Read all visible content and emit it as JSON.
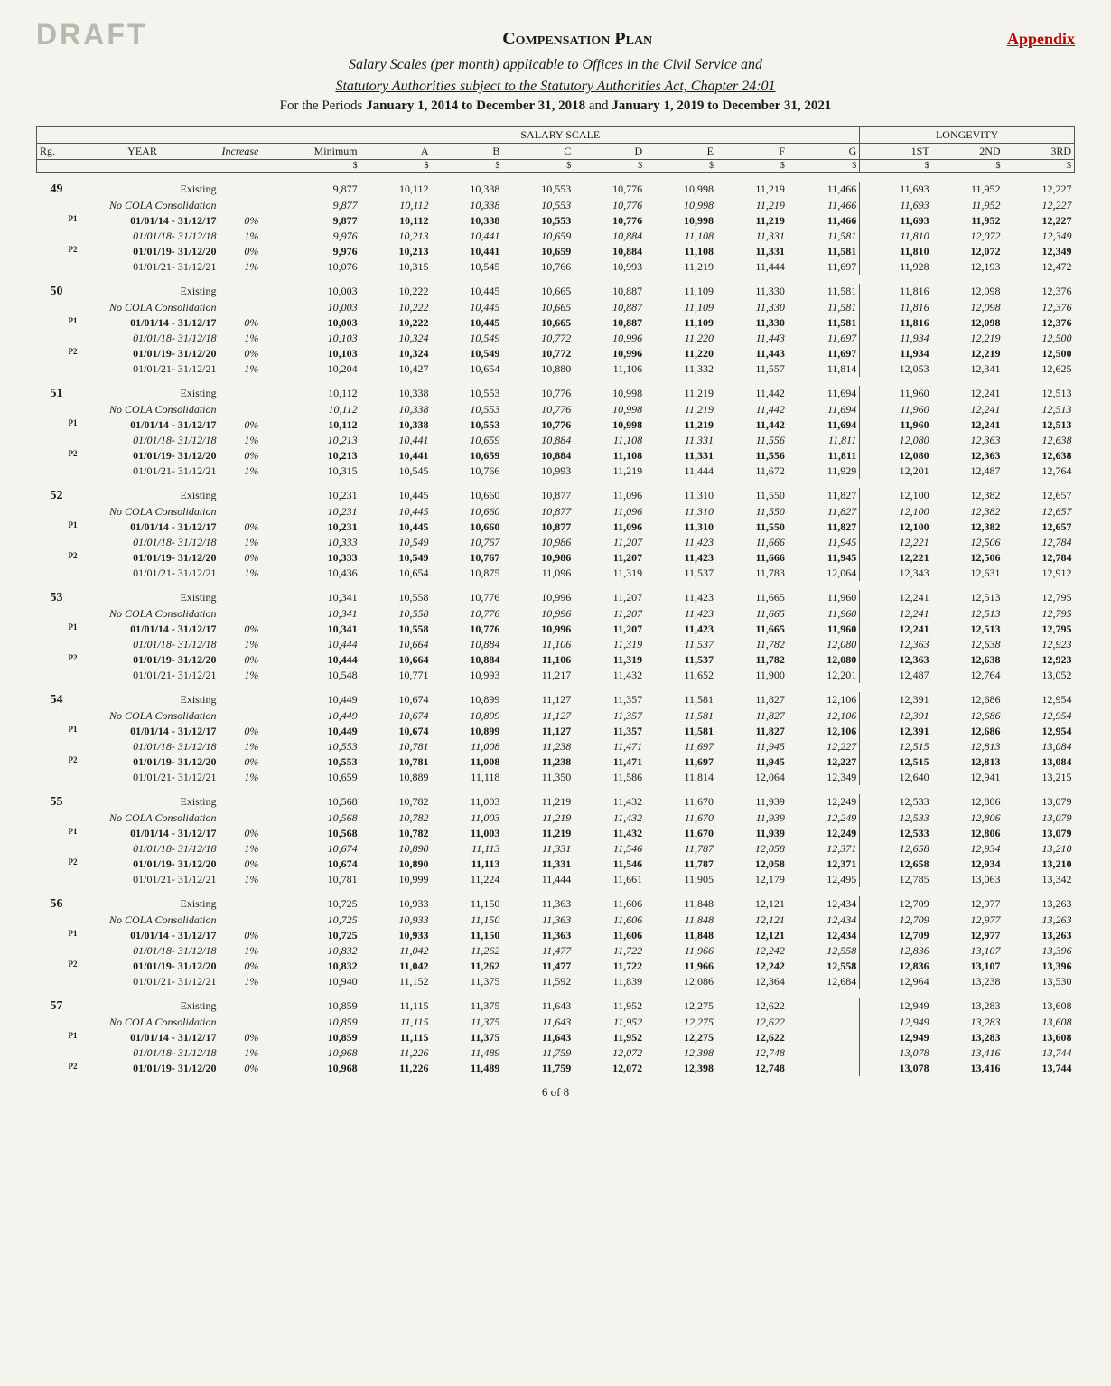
{
  "header": {
    "draft": "DRAFT",
    "title": "Compensation Plan",
    "appendix": "Appendix",
    "sub1": "Salary Scales (per month) applicable to Offices in the Civil Service and",
    "sub2": "Statutory Authorities subject to the Statutory Authorities Act, Chapter 24:01",
    "periods_prefix": "For the Periods ",
    "period1": "January 1, 2014 to December 31, 2018",
    "periods_mid": " and ",
    "period2": "January 1, 2019 to December 31, 2021"
  },
  "columns": {
    "rg": "Rg.",
    "year": "YEAR",
    "increase": "Increase",
    "minimum": "Minimum",
    "scale": "SALARY SCALE",
    "letters": [
      "A",
      "B",
      "C",
      "D",
      "E",
      "F",
      "G"
    ],
    "longevity": "LONGEVITY",
    "long_cols": [
      "1ST",
      "2ND",
      "3RD"
    ],
    "unit": "$"
  },
  "row_labels": {
    "existing": "Existing",
    "nocola": "No COLA Consolidation",
    "p1a": "01/01/14 - 31/12/17",
    "p1b": "01/01/18- 31/12/18",
    "p2a": "01/01/19- 31/12/20",
    "p2b": "01/01/21- 31/12/21",
    "p1tag": "P1",
    "p2tag": "P2"
  },
  "increases": {
    "zero": "0%",
    "one": "1%"
  },
  "groups": [
    {
      "rg": "49",
      "rows": [
        [
          "9,877",
          "10,112",
          "10,338",
          "10,553",
          "10,776",
          "10,998",
          "11,219",
          "11,466",
          "11,693",
          "11,952",
          "12,227"
        ],
        [
          "9,877",
          "10,112",
          "10,338",
          "10,553",
          "10,776",
          "10,998",
          "11,219",
          "11,466",
          "11,693",
          "11,952",
          "12,227"
        ],
        [
          "9,877",
          "10,112",
          "10,338",
          "10,553",
          "10,776",
          "10,998",
          "11,219",
          "11,466",
          "11,693",
          "11,952",
          "12,227"
        ],
        [
          "9,976",
          "10,213",
          "10,441",
          "10,659",
          "10,884",
          "11,108",
          "11,331",
          "11,581",
          "11,810",
          "12,072",
          "12,349"
        ],
        [
          "9,976",
          "10,213",
          "10,441",
          "10,659",
          "10,884",
          "11,108",
          "11,331",
          "11,581",
          "11,810",
          "12,072",
          "12,349"
        ],
        [
          "10,076",
          "10,315",
          "10,545",
          "10,766",
          "10,993",
          "11,219",
          "11,444",
          "11,697",
          "11,928",
          "12,193",
          "12,472"
        ]
      ]
    },
    {
      "rg": "50",
      "rows": [
        [
          "10,003",
          "10,222",
          "10,445",
          "10,665",
          "10,887",
          "11,109",
          "11,330",
          "11,581",
          "11,816",
          "12,098",
          "12,376"
        ],
        [
          "10,003",
          "10,222",
          "10,445",
          "10,665",
          "10,887",
          "11,109",
          "11,330",
          "11,581",
          "11,816",
          "12,098",
          "12,376"
        ],
        [
          "10,003",
          "10,222",
          "10,445",
          "10,665",
          "10,887",
          "11,109",
          "11,330",
          "11,581",
          "11,816",
          "12,098",
          "12,376"
        ],
        [
          "10,103",
          "10,324",
          "10,549",
          "10,772",
          "10,996",
          "11,220",
          "11,443",
          "11,697",
          "11,934",
          "12,219",
          "12,500"
        ],
        [
          "10,103",
          "10,324",
          "10,549",
          "10,772",
          "10,996",
          "11,220",
          "11,443",
          "11,697",
          "11,934",
          "12,219",
          "12,500"
        ],
        [
          "10,204",
          "10,427",
          "10,654",
          "10,880",
          "11,106",
          "11,332",
          "11,557",
          "11,814",
          "12,053",
          "12,341",
          "12,625"
        ]
      ]
    },
    {
      "rg": "51",
      "rows": [
        [
          "10,112",
          "10,338",
          "10,553",
          "10,776",
          "10,998",
          "11,219",
          "11,442",
          "11,694",
          "11,960",
          "12,241",
          "12,513"
        ],
        [
          "10,112",
          "10,338",
          "10,553",
          "10,776",
          "10,998",
          "11,219",
          "11,442",
          "11,694",
          "11,960",
          "12,241",
          "12,513"
        ],
        [
          "10,112",
          "10,338",
          "10,553",
          "10,776",
          "10,998",
          "11,219",
          "11,442",
          "11,694",
          "11,960",
          "12,241",
          "12,513"
        ],
        [
          "10,213",
          "10,441",
          "10,659",
          "10,884",
          "11,108",
          "11,331",
          "11,556",
          "11,811",
          "12,080",
          "12,363",
          "12,638"
        ],
        [
          "10,213",
          "10,441",
          "10,659",
          "10,884",
          "11,108",
          "11,331",
          "11,556",
          "11,811",
          "12,080",
          "12,363",
          "12,638"
        ],
        [
          "10,315",
          "10,545",
          "10,766",
          "10,993",
          "11,219",
          "11,444",
          "11,672",
          "11,929",
          "12,201",
          "12,487",
          "12,764"
        ]
      ]
    },
    {
      "rg": "52",
      "rows": [
        [
          "10,231",
          "10,445",
          "10,660",
          "10,877",
          "11,096",
          "11,310",
          "11,550",
          "11,827",
          "12,100",
          "12,382",
          "12,657"
        ],
        [
          "10,231",
          "10,445",
          "10,660",
          "10,877",
          "11,096",
          "11,310",
          "11,550",
          "11,827",
          "12,100",
          "12,382",
          "12,657"
        ],
        [
          "10,231",
          "10,445",
          "10,660",
          "10,877",
          "11,096",
          "11,310",
          "11,550",
          "11,827",
          "12,100",
          "12,382",
          "12,657"
        ],
        [
          "10,333",
          "10,549",
          "10,767",
          "10,986",
          "11,207",
          "11,423",
          "11,666",
          "11,945",
          "12,221",
          "12,506",
          "12,784"
        ],
        [
          "10,333",
          "10,549",
          "10,767",
          "10,986",
          "11,207",
          "11,423",
          "11,666",
          "11,945",
          "12,221",
          "12,506",
          "12,784"
        ],
        [
          "10,436",
          "10,654",
          "10,875",
          "11,096",
          "11,319",
          "11,537",
          "11,783",
          "12,064",
          "12,343",
          "12,631",
          "12,912"
        ]
      ]
    },
    {
      "rg": "53",
      "rows": [
        [
          "10,341",
          "10,558",
          "10,776",
          "10,996",
          "11,207",
          "11,423",
          "11,665",
          "11,960",
          "12,241",
          "12,513",
          "12,795"
        ],
        [
          "10,341",
          "10,558",
          "10,776",
          "10,996",
          "11,207",
          "11,423",
          "11,665",
          "11,960",
          "12,241",
          "12,513",
          "12,795"
        ],
        [
          "10,341",
          "10,558",
          "10,776",
          "10,996",
          "11,207",
          "11,423",
          "11,665",
          "11,960",
          "12,241",
          "12,513",
          "12,795"
        ],
        [
          "10,444",
          "10,664",
          "10,884",
          "11,106",
          "11,319",
          "11,537",
          "11,782",
          "12,080",
          "12,363",
          "12,638",
          "12,923"
        ],
        [
          "10,444",
          "10,664",
          "10,884",
          "11,106",
          "11,319",
          "11,537",
          "11,782",
          "12,080",
          "12,363",
          "12,638",
          "12,923"
        ],
        [
          "10,548",
          "10,771",
          "10,993",
          "11,217",
          "11,432",
          "11,652",
          "11,900",
          "12,201",
          "12,487",
          "12,764",
          "13,052"
        ]
      ]
    },
    {
      "rg": "54",
      "rows": [
        [
          "10,449",
          "10,674",
          "10,899",
          "11,127",
          "11,357",
          "11,581",
          "11,827",
          "12,106",
          "12,391",
          "12,686",
          "12,954"
        ],
        [
          "10,449",
          "10,674",
          "10,899",
          "11,127",
          "11,357",
          "11,581",
          "11,827",
          "12,106",
          "12,391",
          "12,686",
          "12,954"
        ],
        [
          "10,449",
          "10,674",
          "10,899",
          "11,127",
          "11,357",
          "11,581",
          "11,827",
          "12,106",
          "12,391",
          "12,686",
          "12,954"
        ],
        [
          "10,553",
          "10,781",
          "11,008",
          "11,238",
          "11,471",
          "11,697",
          "11,945",
          "12,227",
          "12,515",
          "12,813",
          "13,084"
        ],
        [
          "10,553",
          "10,781",
          "11,008",
          "11,238",
          "11,471",
          "11,697",
          "11,945",
          "12,227",
          "12,515",
          "12,813",
          "13,084"
        ],
        [
          "10,659",
          "10,889",
          "11,118",
          "11,350",
          "11,586",
          "11,814",
          "12,064",
          "12,349",
          "12,640",
          "12,941",
          "13,215"
        ]
      ]
    },
    {
      "rg": "55",
      "rows": [
        [
          "10,568",
          "10,782",
          "11,003",
          "11,219",
          "11,432",
          "11,670",
          "11,939",
          "12,249",
          "12,533",
          "12,806",
          "13,079"
        ],
        [
          "10,568",
          "10,782",
          "11,003",
          "11,219",
          "11,432",
          "11,670",
          "11,939",
          "12,249",
          "12,533",
          "12,806",
          "13,079"
        ],
        [
          "10,568",
          "10,782",
          "11,003",
          "11,219",
          "11,432",
          "11,670",
          "11,939",
          "12,249",
          "12,533",
          "12,806",
          "13,079"
        ],
        [
          "10,674",
          "10,890",
          "11,113",
          "11,331",
          "11,546",
          "11,787",
          "12,058",
          "12,371",
          "12,658",
          "12,934",
          "13,210"
        ],
        [
          "10,674",
          "10,890",
          "11,113",
          "11,331",
          "11,546",
          "11,787",
          "12,058",
          "12,371",
          "12,658",
          "12,934",
          "13,210"
        ],
        [
          "10,781",
          "10,999",
          "11,224",
          "11,444",
          "11,661",
          "11,905",
          "12,179",
          "12,495",
          "12,785",
          "13,063",
          "13,342"
        ]
      ]
    },
    {
      "rg": "56",
      "rows": [
        [
          "10,725",
          "10,933",
          "11,150",
          "11,363",
          "11,606",
          "11,848",
          "12,121",
          "12,434",
          "12,709",
          "12,977",
          "13,263"
        ],
        [
          "10,725",
          "10,933",
          "11,150",
          "11,363",
          "11,606",
          "11,848",
          "12,121",
          "12,434",
          "12,709",
          "12,977",
          "13,263"
        ],
        [
          "10,725",
          "10,933",
          "11,150",
          "11,363",
          "11,606",
          "11,848",
          "12,121",
          "12,434",
          "12,709",
          "12,977",
          "13,263"
        ],
        [
          "10,832",
          "11,042",
          "11,262",
          "11,477",
          "11,722",
          "11,966",
          "12,242",
          "12,558",
          "12,836",
          "13,107",
          "13,396"
        ],
        [
          "10,832",
          "11,042",
          "11,262",
          "11,477",
          "11,722",
          "11,966",
          "12,242",
          "12,558",
          "12,836",
          "13,107",
          "13,396"
        ],
        [
          "10,940",
          "11,152",
          "11,375",
          "11,592",
          "11,839",
          "12,086",
          "12,364",
          "12,684",
          "12,964",
          "13,238",
          "13,530"
        ]
      ]
    },
    {
      "rg": "57",
      "short": true,
      "rows": [
        [
          "10,859",
          "11,115",
          "11,375",
          "11,643",
          "11,952",
          "12,275",
          "12,622",
          "",
          "12,949",
          "13,283",
          "13,608"
        ],
        [
          "10,859",
          "11,115",
          "11,375",
          "11,643",
          "11,952",
          "12,275",
          "12,622",
          "",
          "12,949",
          "13,283",
          "13,608"
        ],
        [
          "10,859",
          "11,115",
          "11,375",
          "11,643",
          "11,952",
          "12,275",
          "12,622",
          "",
          "12,949",
          "13,283",
          "13,608"
        ],
        [
          "10,968",
          "11,226",
          "11,489",
          "11,759",
          "12,072",
          "12,398",
          "12,748",
          "",
          "13,078",
          "13,416",
          "13,744"
        ],
        [
          "10,968",
          "11,226",
          "11,489",
          "11,759",
          "12,072",
          "12,398",
          "12,748",
          "",
          "13,078",
          "13,416",
          "13,744"
        ]
      ]
    }
  ],
  "footer": "6 of 8"
}
